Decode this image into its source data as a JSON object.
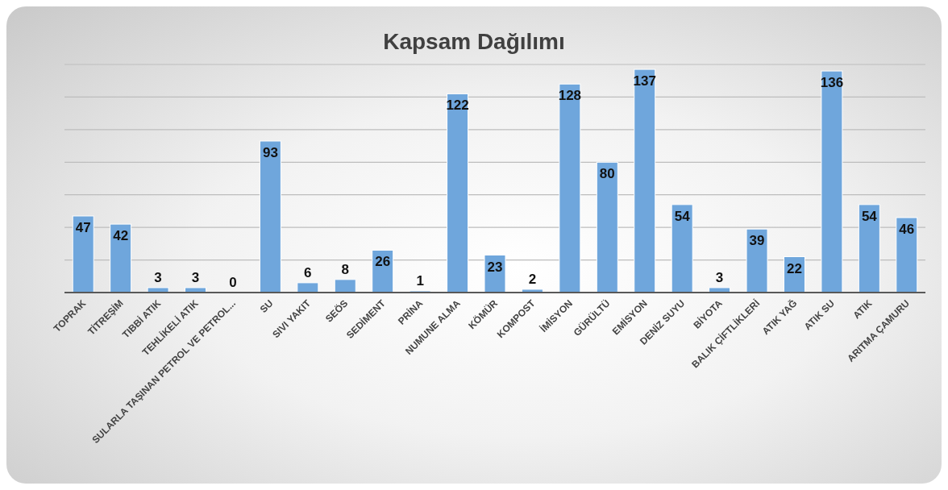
{
  "chart_data": {
    "type": "bar",
    "title": "Kapsam Dağılımı",
    "categories": [
      "TOPRAK",
      "TİTREŞİM",
      "TIBBİ ATIK",
      "TEHLİKELİ ATIK",
      "SULARLA TAŞINAN PETROL VE PETROL...",
      "SU",
      "SIVI YAKIT",
      "SEÖS",
      "SEDİMENT",
      "PRİNA",
      "NUMUNE ALMA",
      "KÖMÜR",
      "KOMPOST",
      "İMİSYON",
      "GÜRÜLTÜ",
      "EMİSYON",
      "DENİZ SUYU",
      "BİYOTA",
      "BALIK ÇİFTLİKLERİ",
      "ATIK YAĞ",
      "ATIK SU",
      "ATIK",
      "ARITMA ÇAMURU"
    ],
    "values": [
      47,
      42,
      3,
      3,
      0,
      93,
      6,
      8,
      26,
      1,
      122,
      23,
      2,
      128,
      80,
      137,
      54,
      3,
      39,
      22,
      136,
      54,
      46
    ],
    "color": "#6fa6dc",
    "grid": "y",
    "tick_labels": "x",
    "data_labels": true
  }
}
